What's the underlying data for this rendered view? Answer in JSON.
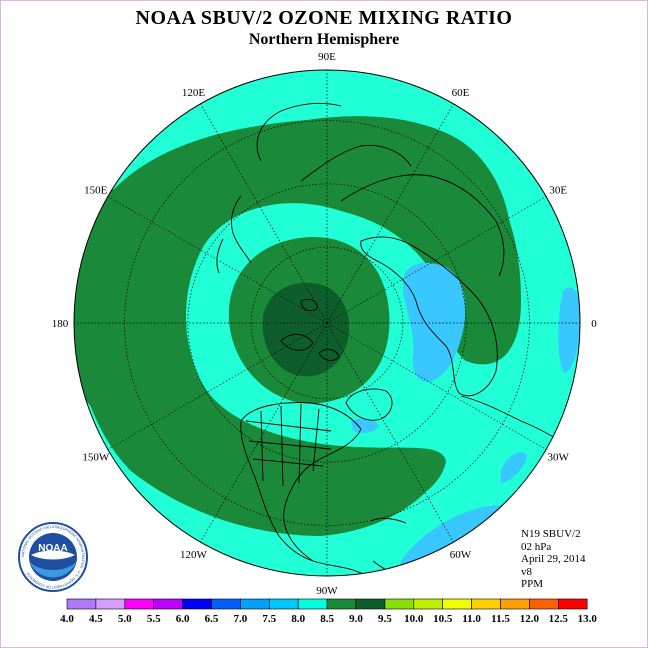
{
  "title": "NOAA SBUV/2 OZONE MIXING RATIO",
  "subtitle": "Northern Hemisphere",
  "longitude_labels": [
    {
      "text": "120E",
      "lon": 120
    },
    {
      "text": "90E",
      "lon": 90
    },
    {
      "text": "60E",
      "lon": 60
    },
    {
      "text": "30E",
      "lon": 30
    },
    {
      "text": "0",
      "lon": 0
    },
    {
      "text": "30W",
      "lon": -30
    },
    {
      "text": "60W",
      "lon": -60
    },
    {
      "text": "90W",
      "lon": -90
    },
    {
      "text": "120W",
      "lon": -120
    },
    {
      "text": "150W",
      "lon": -150
    },
    {
      "text": "180",
      "lon": 180
    },
    {
      "text": "150E",
      "lon": 150
    }
  ],
  "info": {
    "satellite": "N19 SBUV/2",
    "level": "02 hPa",
    "date": "April 29, 2014",
    "version": "v8",
    "units": "PPM"
  },
  "colors": {
    "field_low": "#2ee6c8",
    "field_mid": "#21ffd6",
    "band_green": "#1a8a3a",
    "core_dark": "#0d5e2a",
    "minimum_blue": "#38c8ff",
    "logo_blue": "#1f4fa0"
  },
  "colorbar": {
    "ticks": [
      "4.0",
      "4.5",
      "5.0",
      "5.5",
      "6.0",
      "6.5",
      "7.0",
      "7.5",
      "8.0",
      "8.5",
      "9.0",
      "9.5",
      "10.0",
      "10.5",
      "11.0",
      "11.5",
      "12.0",
      "12.5",
      "13.0"
    ],
    "colors": [
      "#b078ff",
      "#d4a0ff",
      "#ff00ff",
      "#c000ff",
      "#0000ff",
      "#0060ff",
      "#00a0ff",
      "#00c8ff",
      "#00ffe0",
      "#1a8a3a",
      "#0d5e2a",
      "#88e000",
      "#c0f000",
      "#f0ff00",
      "#ffd000",
      "#ffa000",
      "#ff6000",
      "#ff0000",
      "#8b4513"
    ]
  },
  "logo": {
    "text": "NOAA",
    "ring_text": "NATIONAL OCEANIC AND ATMOSPHERIC ADMINISTRATION · U.S. DEPARTMENT OF COMMERCE"
  },
  "projection": "north-polar-stereographic",
  "pole_position": "center",
  "graticule": true,
  "coastlines": true
}
